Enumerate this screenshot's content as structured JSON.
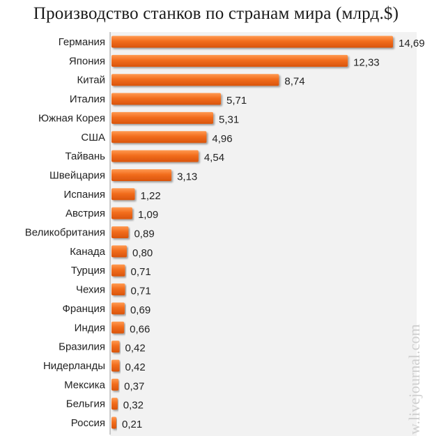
{
  "chart_data": {
    "type": "bar",
    "orientation": "horizontal",
    "title": "Производство станков по странам мира (млрд.$)",
    "categories": [
      "Германия",
      "Япония",
      "Китай",
      "Италия",
      "Южная Корея",
      "США",
      "Тайвань",
      "Швейцария",
      "Испания",
      "Австрия",
      "Великобритания",
      "Канада",
      "Турция",
      "Чехия",
      "Франция",
      "Индия",
      "Бразилия",
      "Нидерланды",
      "Мексика",
      "Бельгия",
      "Россия"
    ],
    "values": [
      14.69,
      12.33,
      8.74,
      5.71,
      5.31,
      4.96,
      4.54,
      3.13,
      1.22,
      1.09,
      0.89,
      0.8,
      0.71,
      0.71,
      0.69,
      0.66,
      0.42,
      0.42,
      0.37,
      0.32,
      0.21
    ],
    "value_labels": [
      "14,69",
      "12,33",
      "8,74",
      "5,71",
      "5,31",
      "4,96",
      "4,54",
      "3,13",
      "1,22",
      "1,09",
      "0,89",
      "0,80",
      "0,71",
      "0,71",
      "0,69",
      "0,66",
      "0,42",
      "0,42",
      "0,37",
      "0,32",
      "0,21"
    ],
    "bar_color": "#f26d1d",
    "grid": false,
    "legend": "none",
    "xlim": [
      0,
      14.69
    ]
  },
  "watermark": "w.livejournal.com"
}
